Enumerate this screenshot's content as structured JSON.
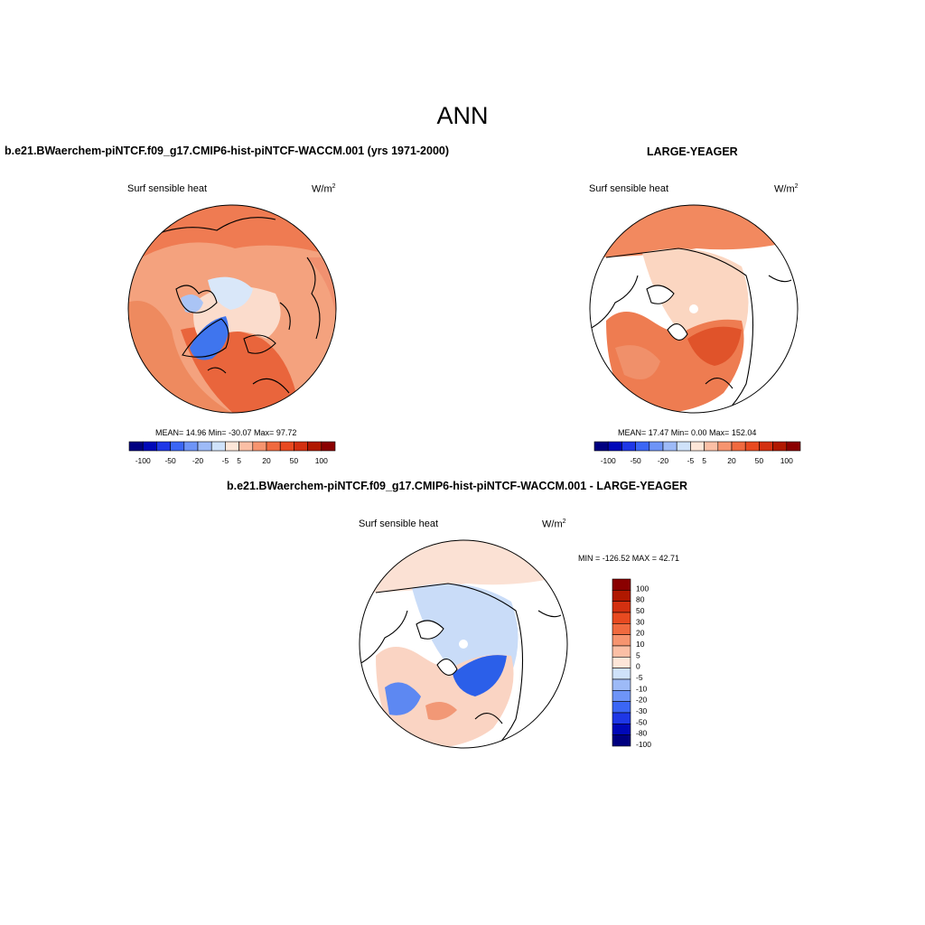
{
  "figure": {
    "season": "ANN",
    "colors": {
      "scale": [
        "#000080",
        "#0008b8",
        "#1e37e6",
        "#3b66f5",
        "#6e94f7",
        "#9dbaf7",
        "#cfe2fa",
        "#fde6d8",
        "#fbbfa5",
        "#f6946f",
        "#f06a3f",
        "#e84a20",
        "#d33010",
        "#b01800",
        "#8a0000"
      ],
      "land_fill": "#ffffff",
      "coast": "#000000"
    }
  },
  "panels": {
    "model": {
      "case_title": "b.e21.BWaerchem-piNTCF.f09_g17.CMIP6-hist-piNTCF-WACCM.001 (yrs 1971-2000)",
      "variable": "Surf sensible heat",
      "units_base": "W/m",
      "units_sup": "2",
      "stats": "MEAN=  14.96  Min= -30.07  Max=  97.72"
    },
    "obs": {
      "case_title": "LARGE-YEAGER",
      "variable": "Surf sensible heat",
      "units_base": "W/m",
      "units_sup": "2",
      "stats": "MEAN=  17.47  Min=   0.00  Max= 152.04"
    },
    "diff": {
      "case_title": "b.e21.BWaerchem-piNTCF.f09_g17.CMIP6-hist-piNTCF-WACCM.001 - LARGE-YEAGER",
      "variable": "Surf sensible heat",
      "units_base": "W/m",
      "units_sup": "2",
      "stats": "MIN = -126.52 MAX =  42.71"
    }
  },
  "colorbars": {
    "horizontal_ticks": [
      "-100",
      "-50",
      "-20",
      "-5",
      "5",
      "20",
      "50",
      "100"
    ],
    "vertical_labels": [
      "100",
      "80",
      "50",
      "30",
      "20",
      "10",
      "5",
      "0",
      "-5",
      "-10",
      "-20",
      "-30",
      "-50",
      "-80",
      "-100"
    ]
  }
}
